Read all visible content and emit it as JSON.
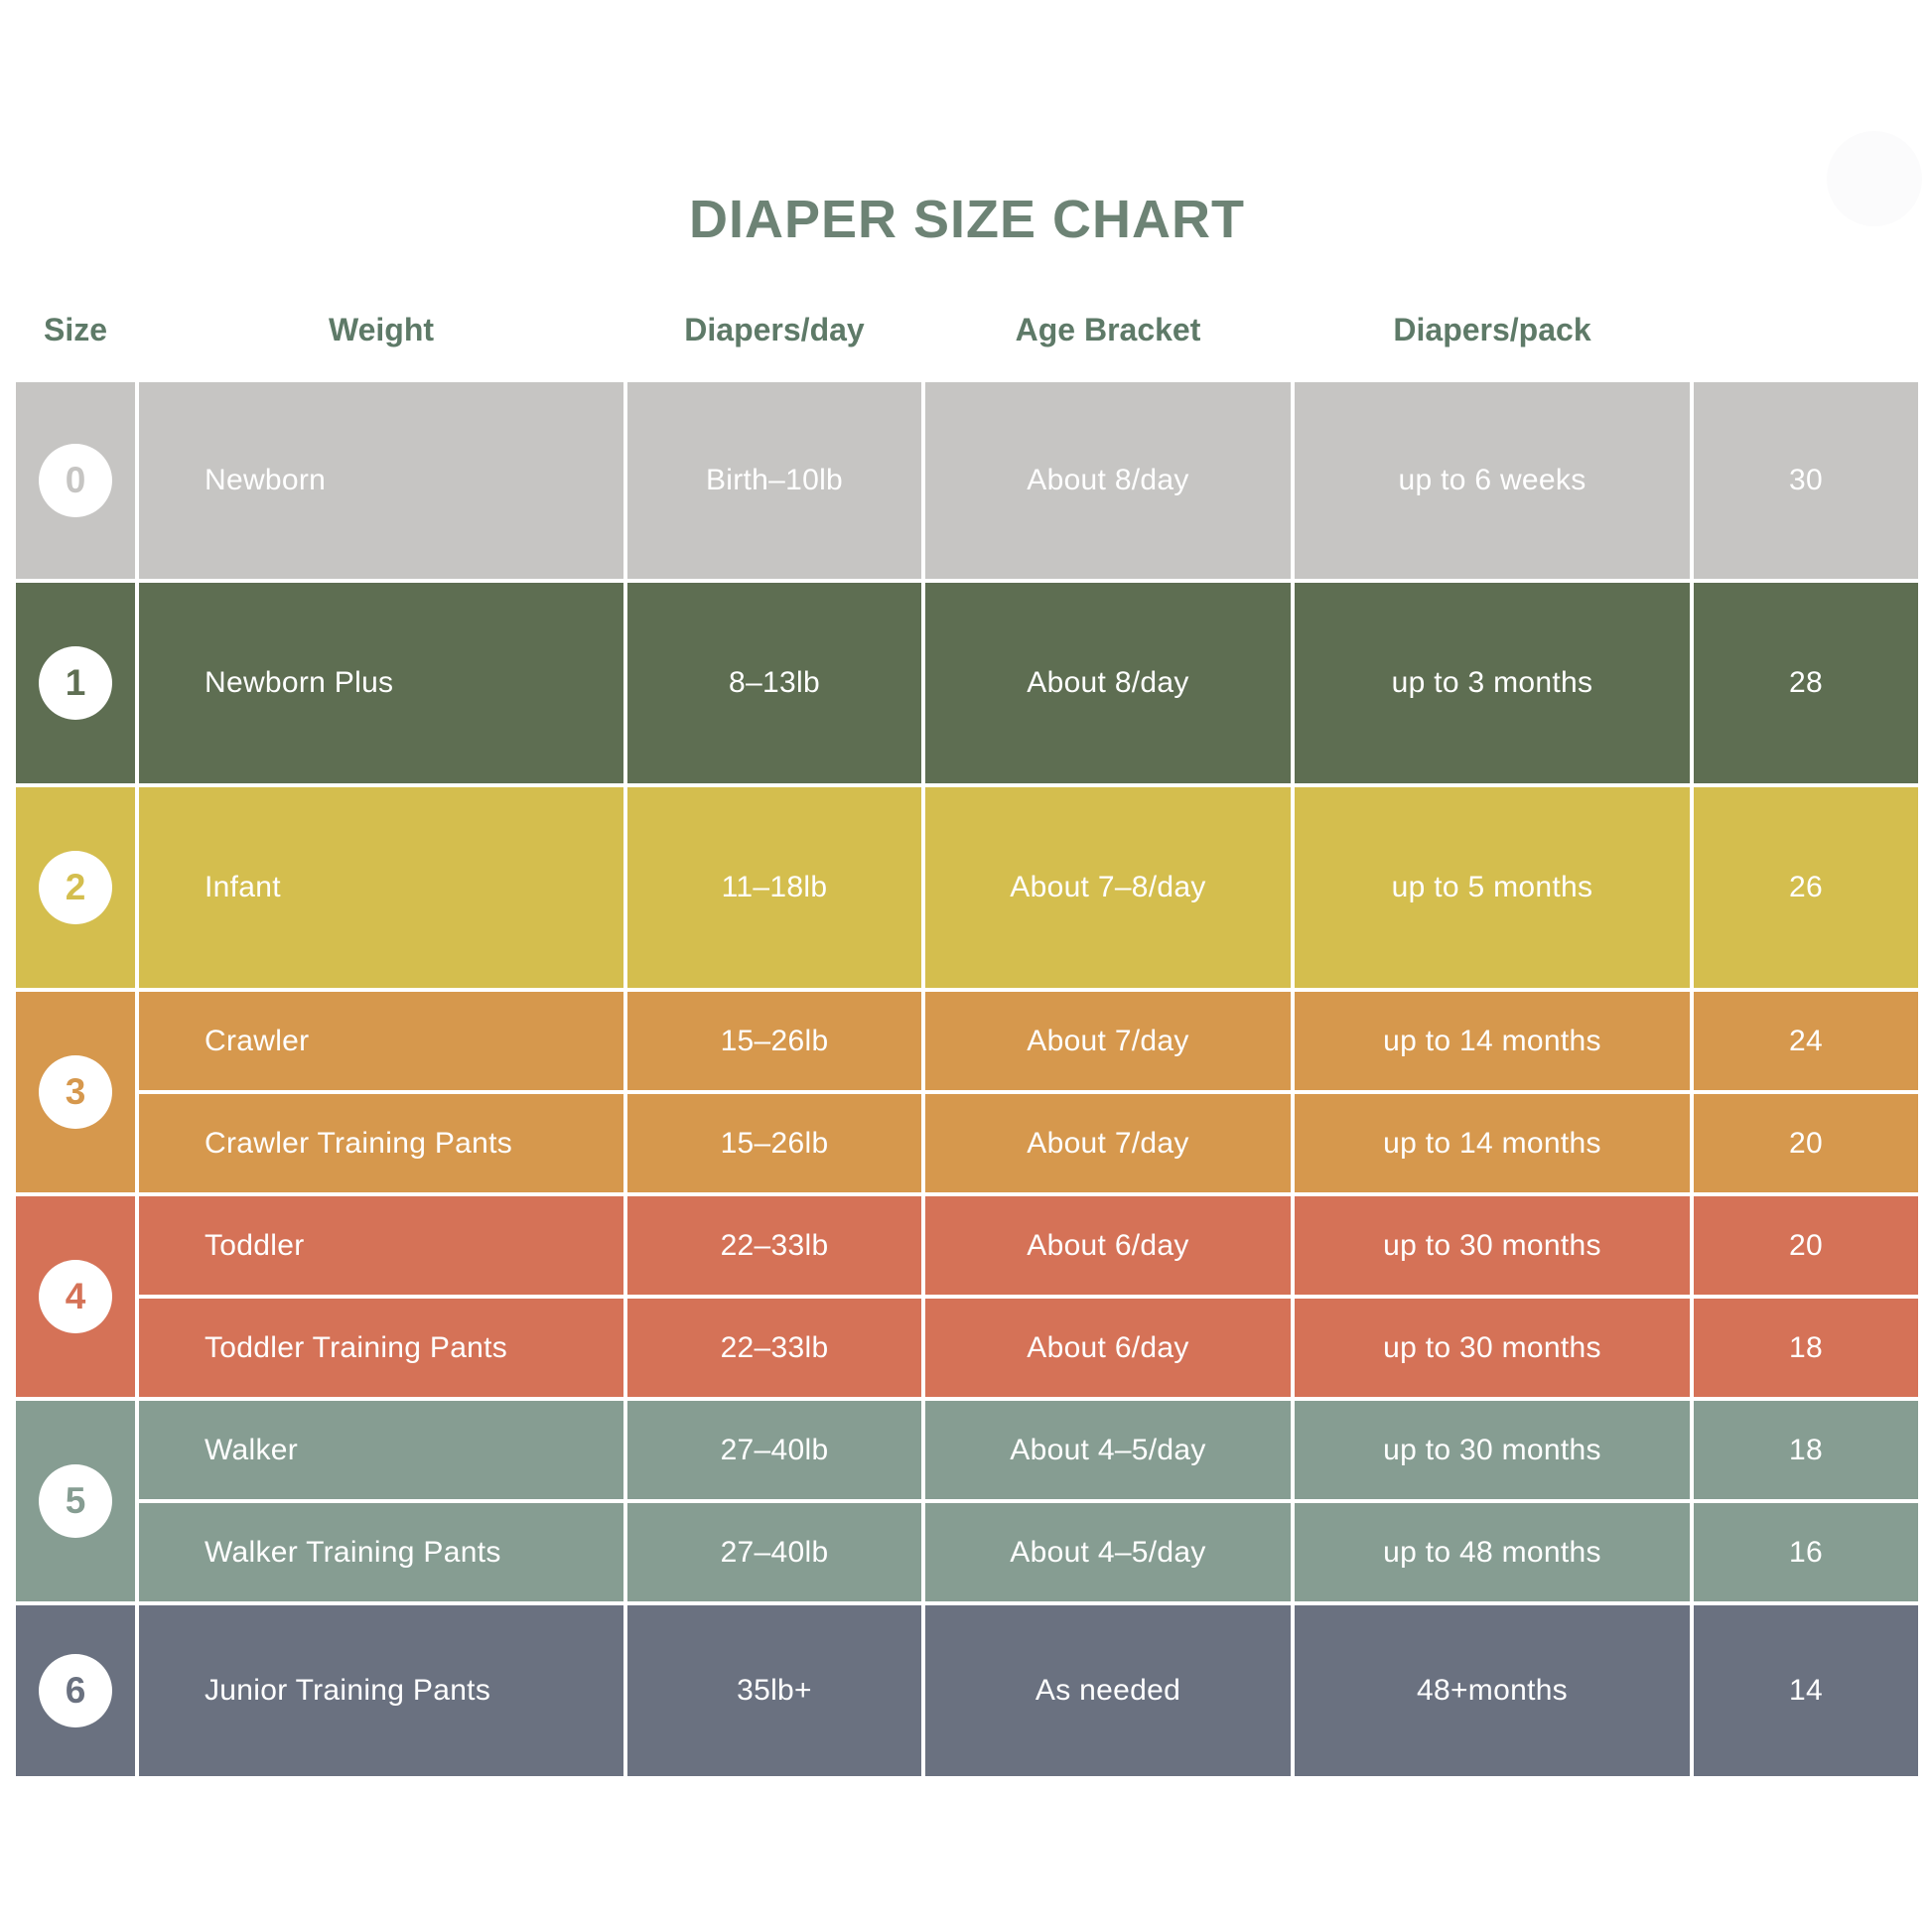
{
  "page_title": "DIAPER SIZE CHART",
  "colors": {
    "heading_text": "#5e7a68",
    "title_text": "#6d8375",
    "cell_text": "#ffffff",
    "badge_background": "#ffffff",
    "size0": "#c6c5c3",
    "size1": "#5e6e52",
    "size2": "#d4be4e",
    "size3": "#d6984d",
    "size4": "#d57257",
    "size5": "#869d92",
    "size6": "#6a7180"
  },
  "chart_data": {
    "type": "table",
    "title": "DIAPER SIZE CHART",
    "columns": [
      "Size",
      "Weight",
      "Diapers/day",
      "Age Bracket",
      "Diapers/pack"
    ],
    "groups": [
      {
        "size": "0",
        "color": "size0",
        "rows": [
          {
            "name": "Newborn",
            "weight": "Birth–10lb",
            "per_day": "About 8/day",
            "age": "up to 6 weeks",
            "per_pack": "30"
          }
        ]
      },
      {
        "size": "1",
        "color": "size1",
        "rows": [
          {
            "name": "Newborn Plus",
            "weight": "8–13lb",
            "per_day": "About 8/day",
            "age": "up to 3 months",
            "per_pack": "28"
          }
        ]
      },
      {
        "size": "2",
        "color": "size2",
        "rows": [
          {
            "name": "Infant",
            "weight": "11–18lb",
            "per_day": "About 7–8/day",
            "age": "up to 5 months",
            "per_pack": "26"
          }
        ]
      },
      {
        "size": "3",
        "color": "size3",
        "rows": [
          {
            "name": "Crawler",
            "weight": "15–26lb",
            "per_day": "About 7/day",
            "age": "up to 14 months",
            "per_pack": "24"
          },
          {
            "name": "Crawler Training Pants",
            "weight": "15–26lb",
            "per_day": "About 7/day",
            "age": "up to 14 months",
            "per_pack": "20"
          }
        ]
      },
      {
        "size": "4",
        "color": "size4",
        "rows": [
          {
            "name": "Toddler",
            "weight": "22–33lb",
            "per_day": "About 6/day",
            "age": "up to 30 months",
            "per_pack": "20"
          },
          {
            "name": "Toddler Training Pants",
            "weight": "22–33lb",
            "per_day": "About 6/day",
            "age": "up to 30 months",
            "per_pack": "18"
          }
        ]
      },
      {
        "size": "5",
        "color": "size5",
        "rows": [
          {
            "name": "Walker",
            "weight": "27–40lb",
            "per_day": "About 4–5/day",
            "age": "up to 30 months",
            "per_pack": "18"
          },
          {
            "name": "Walker Training Pants",
            "weight": "27–40lb",
            "per_day": "About 4–5/day",
            "age": "up to 48 months",
            "per_pack": "16"
          }
        ]
      },
      {
        "size": "6",
        "color": "size6",
        "rows": [
          {
            "name": "Junior Training Pants",
            "weight": "35lb+",
            "per_day": "As needed",
            "age": "48+months",
            "per_pack": "14"
          }
        ]
      }
    ]
  }
}
